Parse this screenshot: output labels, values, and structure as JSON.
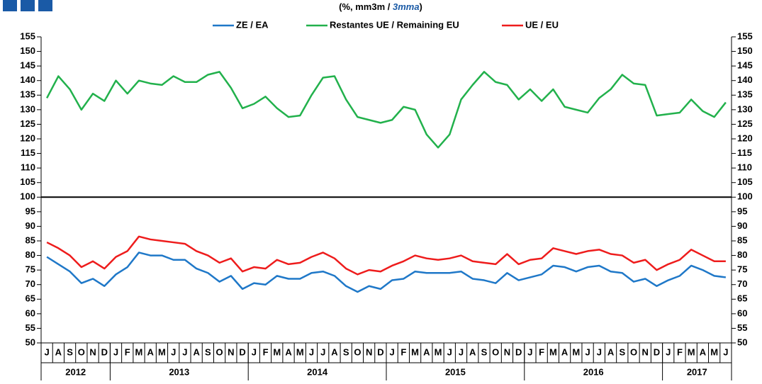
{
  "chart_data": {
    "type": "line",
    "subtitle": [
      "(%, mm3m / ",
      "3mma",
      ")"
    ],
    "categories": [
      "J",
      "A",
      "S",
      "O",
      "N",
      "D",
      "J",
      "F",
      "M",
      "A",
      "M",
      "J",
      "J",
      "A",
      "S",
      "O",
      "N",
      "D",
      "J",
      "F",
      "M",
      "A",
      "M",
      "J",
      "J",
      "A",
      "S",
      "O",
      "N",
      "D",
      "J",
      "F",
      "M",
      "A",
      "M",
      "J",
      "J",
      "A",
      "S",
      "O",
      "N",
      "D",
      "J",
      "F",
      "M",
      "A",
      "M",
      "J",
      "J",
      "A",
      "S",
      "O",
      "N",
      "D",
      "J",
      "F",
      "M",
      "A",
      "M",
      "J"
    ],
    "years": [
      "2012",
      "2013",
      "2014",
      "2015",
      "2016",
      "2017"
    ],
    "series": [
      {
        "name": "ZE / EA",
        "color": "#1f78c8",
        "values": [
          79.5,
          77,
          74.5,
          70.5,
          72,
          69.5,
          73.5,
          76,
          81,
          80,
          80,
          78.5,
          78.5,
          75.5,
          74,
          71,
          73,
          68.5,
          70.5,
          70,
          73,
          72,
          72,
          74,
          74.5,
          73,
          69.5,
          67.5,
          69.5,
          68.5,
          71.5,
          72,
          74.5,
          74,
          74,
          74,
          74.5,
          72,
          71.5,
          70.5,
          74,
          71.5,
          72.5,
          73.5,
          76.5,
          76,
          74.5,
          76,
          76.5,
          74.5,
          74,
          71,
          72,
          69.5,
          71.5,
          73,
          76.5,
          75,
          73,
          72.5
        ]
      },
      {
        "name": "Restantes UE / Remaining EU",
        "color": "#22b14c",
        "values": [
          134,
          141.5,
          137,
          130,
          135.5,
          133,
          140,
          135.5,
          140,
          139,
          138.5,
          141.5,
          139.5,
          139.5,
          142,
          143,
          137.5,
          130.5,
          132,
          134.5,
          130.5,
          127.5,
          128,
          135,
          141,
          141.5,
          133.5,
          127.5,
          126.5,
          125.5,
          126.5,
          131,
          130,
          121.5,
          117,
          121.5,
          133.5,
          138.5,
          143,
          139.5,
          138.5,
          133.5,
          137,
          133,
          137,
          131,
          130,
          129,
          134,
          137,
          142,
          139,
          138.5,
          128,
          128.5,
          129,
          133.5,
          129.5,
          127.5,
          132.5
        ]
      },
      {
        "name": "UE / EU",
        "color": "#ee1c1c",
        "values": [
          84.5,
          82.5,
          80,
          76,
          78,
          75.5,
          79.5,
          81.5,
          86.5,
          85.5,
          85,
          84.5,
          84,
          81.5,
          80,
          77.5,
          79,
          74.5,
          76,
          75.5,
          78.5,
          77,
          77.5,
          79.5,
          81,
          79,
          75.5,
          73.5,
          75,
          74.5,
          76.5,
          78,
          80,
          79,
          78.5,
          79,
          80,
          78,
          77.5,
          77,
          80.5,
          77,
          78.5,
          79,
          82.5,
          81.5,
          80.5,
          81.5,
          82,
          80.5,
          80,
          77.5,
          78.5,
          75,
          77,
          78.5,
          82,
          80,
          78,
          78
        ]
      }
    ],
    "reference_line": 100,
    "ylim": [
      50,
      155
    ],
    "yticks": [
      50,
      55,
      60,
      65,
      70,
      75,
      80,
      85,
      90,
      95,
      100,
      105,
      110,
      115,
      120,
      125,
      130,
      135,
      140,
      145,
      150,
      155
    ]
  }
}
